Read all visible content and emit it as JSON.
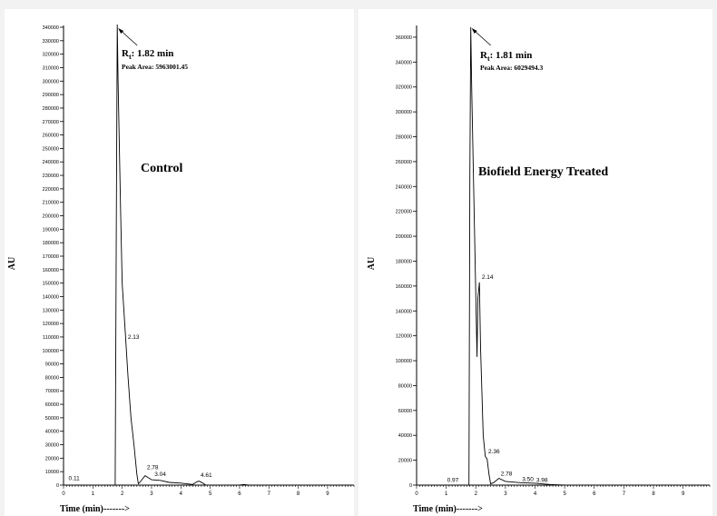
{
  "chart_data": [
    {
      "type": "line",
      "panel": "control",
      "ylabel": "AU",
      "xlabel": "Time (min)------->",
      "xlim": [
        0,
        9.9
      ],
      "ylim": [
        0,
        340000
      ],
      "y_ticks": [
        "0",
        "10000",
        "20000",
        "30000",
        "40000",
        "50000",
        "60000",
        "70000",
        "80000",
        "90000",
        "100000",
        "110000",
        "120000",
        "130000",
        "140000",
        "150000",
        "160000",
        "170000",
        "180000",
        "190000",
        "200000",
        "210000",
        "220000",
        "230000",
        "240000",
        "250000",
        "260000",
        "270000",
        "280000",
        "290000",
        "300000",
        "310000",
        "320000",
        "330000",
        "340000"
      ],
      "x_ticks": [
        "0",
        "1",
        "2",
        "3",
        "4",
        "5",
        "6",
        "7",
        "8",
        "9"
      ],
      "sample_label": "Control",
      "rt_prefix": "R",
      "rt_sub": "t",
      "rt_value": ": 1.82 min",
      "peak_area": "Peak Area: 5963001.45",
      "peak_labels": [
        {
          "text": "0.11",
          "x": 0.11,
          "y": 3000
        },
        {
          "text": "2.13",
          "x": 2.13,
          "y": 108000
        },
        {
          "text": "2.78",
          "x": 2.78,
          "y": 11000
        },
        {
          "text": "3.04",
          "x": 3.04,
          "y": 6000
        },
        {
          "text": "4.61",
          "x": 4.61,
          "y": 5500
        }
      ],
      "trace": [
        [
          0,
          0
        ],
        [
          1.76,
          0
        ],
        [
          1.8,
          200000
        ],
        [
          1.83,
          342000
        ],
        [
          1.86,
          300000
        ],
        [
          1.95,
          200000
        ],
        [
          2.0,
          150000
        ],
        [
          2.1,
          115000
        ],
        [
          2.13,
          105000
        ],
        [
          2.2,
          80000
        ],
        [
          2.3,
          50000
        ],
        [
          2.4,
          30000
        ],
        [
          2.5,
          8000
        ],
        [
          2.55,
          1000
        ],
        [
          2.6,
          2000
        ],
        [
          2.78,
          7000
        ],
        [
          3.0,
          4000
        ],
        [
          3.3,
          3500
        ],
        [
          3.6,
          2000
        ],
        [
          4.0,
          1500
        ],
        [
          4.4,
          500
        ],
        [
          4.55,
          2500
        ],
        [
          4.62,
          3000
        ],
        [
          4.75,
          1500
        ],
        [
          4.85,
          0
        ],
        [
          6.0,
          0
        ],
        [
          6.15,
          500
        ],
        [
          6.3,
          0
        ],
        [
          9.9,
          0
        ]
      ]
    },
    {
      "type": "line",
      "panel": "treated",
      "ylabel": "AU",
      "xlabel": "Time (min)------->",
      "xlim": [
        0,
        9.9
      ],
      "ylim": [
        0,
        368000
      ],
      "y_ticks": [
        "0",
        "20000",
        "40000",
        "60000",
        "80000",
        "100000",
        "120000",
        "140000",
        "160000",
        "180000",
        "200000",
        "220000",
        "240000",
        "260000",
        "280000",
        "300000",
        "320000",
        "340000",
        "360000"
      ],
      "x_ticks": [
        "0",
        "1",
        "2",
        "3",
        "4",
        "5",
        "6",
        "7",
        "8",
        "9"
      ],
      "sample_label": "Biofield Energy Treated",
      "rt_prefix": "R",
      "rt_sub": "t",
      "rt_value": ": 1.81 min",
      "peak_area": "Peak Area: 6029494.3",
      "peak_labels": [
        {
          "text": "0.97",
          "x": 0.97,
          "y": 2000
        },
        {
          "text": "2.14",
          "x": 2.14,
          "y": 165000
        },
        {
          "text": "2.36",
          "x": 2.36,
          "y": 25000
        },
        {
          "text": "2.78",
          "x": 2.78,
          "y": 7000
        },
        {
          "text": "3.50",
          "x": 3.5,
          "y": 2500
        },
        {
          "text": "3.98",
          "x": 3.98,
          "y": 2000
        }
      ],
      "trace": [
        [
          0,
          0
        ],
        [
          1.77,
          0
        ],
        [
          1.8,
          250000
        ],
        [
          1.83,
          368000
        ],
        [
          1.86,
          320000
        ],
        [
          1.92,
          250000
        ],
        [
          2.0,
          150000
        ],
        [
          2.04,
          103000
        ],
        [
          2.07,
          150000
        ],
        [
          2.12,
          163000
        ],
        [
          2.16,
          110000
        ],
        [
          2.25,
          40000
        ],
        [
          2.32,
          23000
        ],
        [
          2.38,
          21000
        ],
        [
          2.45,
          8000
        ],
        [
          2.5,
          1000
        ],
        [
          2.6,
          2000
        ],
        [
          2.78,
          5500
        ],
        [
          3.0,
          3000
        ],
        [
          3.5,
          2000
        ],
        [
          4.0,
          1500
        ],
        [
          4.5,
          500
        ],
        [
          5.0,
          0
        ],
        [
          9.9,
          0
        ]
      ]
    }
  ]
}
